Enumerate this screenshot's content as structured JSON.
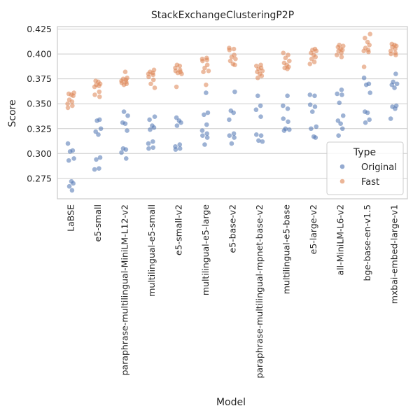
{
  "chart_data": {
    "type": "scatter",
    "title": "StackExchangeClusteringP2P",
    "xlabel": "Model",
    "ylabel": "Score",
    "ylim": [
      0.2545,
      0.4275
    ],
    "yticks": [
      0.275,
      0.3,
      0.325,
      0.35,
      0.375,
      0.4,
      0.425
    ],
    "ytick_labels": [
      "0.275",
      "0.300",
      "0.325",
      "0.350",
      "0.375",
      "0.400",
      "0.425"
    ],
    "grid": true,
    "legend": {
      "title": "Type",
      "position": "lower-right"
    },
    "categories": [
      "LaBSE",
      "e5-small",
      "paraphrase-multilingual-MiniLM-L12-v2",
      "multilingual-e5-small",
      "e5-small-v2",
      "multilingual-e5-large",
      "e5-base-v2",
      "paraphrase-multilingual-mpnet-base-v2",
      "multilingual-e5-base",
      "e5-large-v2",
      "all-MiniLM-L6-v2",
      "bge-base-en-v1.5",
      "mxbai-embed-large-v1"
    ],
    "series": [
      {
        "name": "Original",
        "color": "#4c72b0",
        "points": [
          [
            0.31,
            0.303,
            0.302,
            0.295,
            0.293,
            0.272,
            0.27,
            0.267,
            0.263
          ],
          [
            0.334,
            0.333,
            0.325,
            0.322,
            0.319,
            0.296,
            0.294,
            0.285,
            0.284
          ],
          [
            0.342,
            0.338,
            0.331,
            0.33,
            0.323,
            0.305,
            0.304,
            0.301,
            0.295
          ],
          [
            0.337,
            0.334,
            0.328,
            0.326,
            0.324,
            0.312,
            0.31,
            0.306,
            0.305
          ],
          [
            0.336,
            0.333,
            0.331,
            0.328,
            0.309,
            0.307,
            0.305,
            0.304
          ],
          [
            0.361,
            0.341,
            0.339,
            0.329,
            0.323,
            0.32,
            0.318,
            0.316,
            0.309
          ],
          [
            0.362,
            0.343,
            0.341,
            0.334,
            0.32,
            0.318,
            0.316,
            0.31
          ],
          [
            0.358,
            0.348,
            0.344,
            0.337,
            0.319,
            0.318,
            0.313,
            0.312
          ],
          [
            0.358,
            0.348,
            0.345,
            0.335,
            0.332,
            0.325,
            0.324,
            0.323
          ],
          [
            0.359,
            0.358,
            0.349,
            0.347,
            0.342,
            0.327,
            0.325,
            0.317,
            0.316
          ],
          [
            0.364,
            0.36,
            0.359,
            0.351,
            0.338,
            0.333,
            0.33,
            0.325,
            0.318
          ],
          [
            0.376,
            0.37,
            0.369,
            0.361,
            0.342,
            0.341,
            0.334,
            0.331
          ],
          [
            0.38,
            0.372,
            0.37,
            0.369,
            0.366,
            0.348,
            0.347,
            0.345,
            0.335
          ]
        ]
      },
      {
        "name": "Fast",
        "color": "#dd8452",
        "points": [
          [
            0.361,
            0.36,
            0.359,
            0.358,
            0.354,
            0.352,
            0.35,
            0.348,
            0.346
          ],
          [
            0.373,
            0.372,
            0.37,
            0.369,
            0.368,
            0.367,
            0.362,
            0.359,
            0.357
          ],
          [
            0.382,
            0.376,
            0.375,
            0.374,
            0.373,
            0.372,
            0.371,
            0.37,
            0.369
          ],
          [
            0.384,
            0.382,
            0.381,
            0.38,
            0.379,
            0.377,
            0.374,
            0.37,
            0.366
          ],
          [
            0.389,
            0.388,
            0.386,
            0.384,
            0.383,
            0.382,
            0.381,
            0.38,
            0.367
          ],
          [
            0.396,
            0.395,
            0.394,
            0.393,
            0.389,
            0.386,
            0.383,
            0.382,
            0.369
          ],
          [
            0.406,
            0.405,
            0.404,
            0.399,
            0.397,
            0.395,
            0.393,
            0.39,
            0.389
          ],
          [
            0.389,
            0.388,
            0.386,
            0.385,
            0.383,
            0.382,
            0.38,
            0.378,
            0.376
          ],
          [
            0.401,
            0.399,
            0.396,
            0.393,
            0.391,
            0.389,
            0.387,
            0.386,
            0.385
          ],
          [
            0.405,
            0.404,
            0.403,
            0.401,
            0.399,
            0.397,
            0.395,
            0.392,
            0.39
          ],
          [
            0.409,
            0.408,
            0.407,
            0.405,
            0.404,
            0.403,
            0.401,
            0.399,
            0.397
          ],
          [
            0.42,
            0.416,
            0.412,
            0.409,
            0.406,
            0.404,
            0.403,
            0.402,
            0.387
          ],
          [
            0.41,
            0.409,
            0.408,
            0.407,
            0.405,
            0.403,
            0.401,
            0.4,
            0.399
          ]
        ]
      }
    ]
  }
}
